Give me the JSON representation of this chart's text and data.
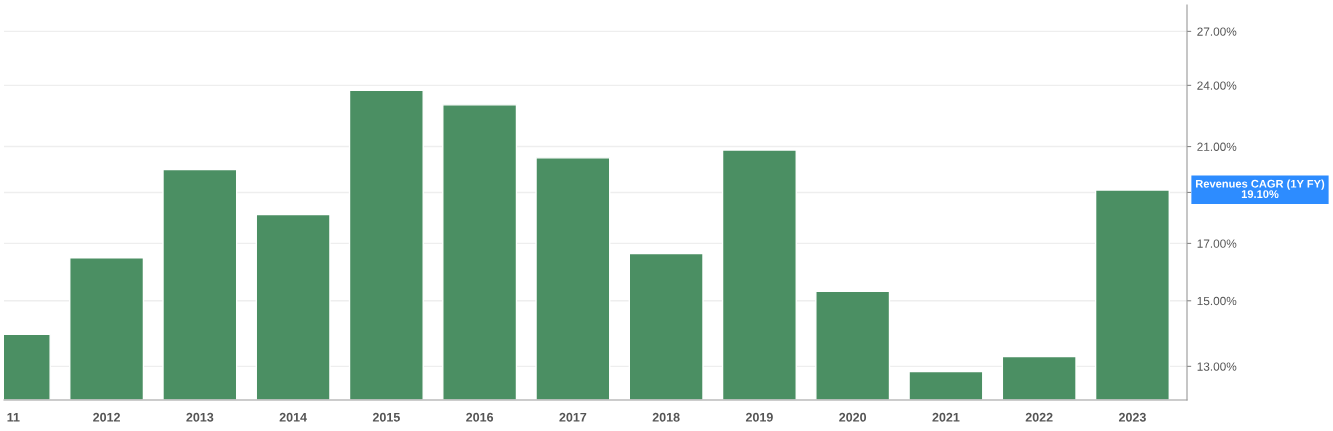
{
  "chart_data": {
    "type": "bar",
    "categories": [
      "11",
      "2012",
      "2013",
      "2014",
      "2015",
      "2016",
      "2017",
      "2018",
      "2019",
      "2020",
      "2021",
      "2022",
      "2023"
    ],
    "values": [
      13.94,
      16.47,
      19.97,
      18.1,
      23.74,
      23.0,
      20.49,
      16.63,
      20.84,
      15.31,
      12.85,
      13.28,
      19.1
    ],
    "color": "#4b8f63",
    "log": true,
    "ylim": [
      12.08,
      28.6
    ],
    "yticks": [
      {
        "value": 13,
        "label": "13.00%"
      },
      {
        "value": 15,
        "label": "15.00%"
      },
      {
        "value": 17,
        "label": "17.00%"
      },
      {
        "value": 19,
        "label": null
      },
      {
        "value": 21,
        "label": "21.00%"
      },
      {
        "value": 24,
        "label": "24.00%"
      },
      {
        "value": 27,
        "label": "27.00%"
      }
    ],
    "grid": "y",
    "annotations": [
      "Revenues CAGR (1Y FY)\n19.10%"
    ]
  }
}
